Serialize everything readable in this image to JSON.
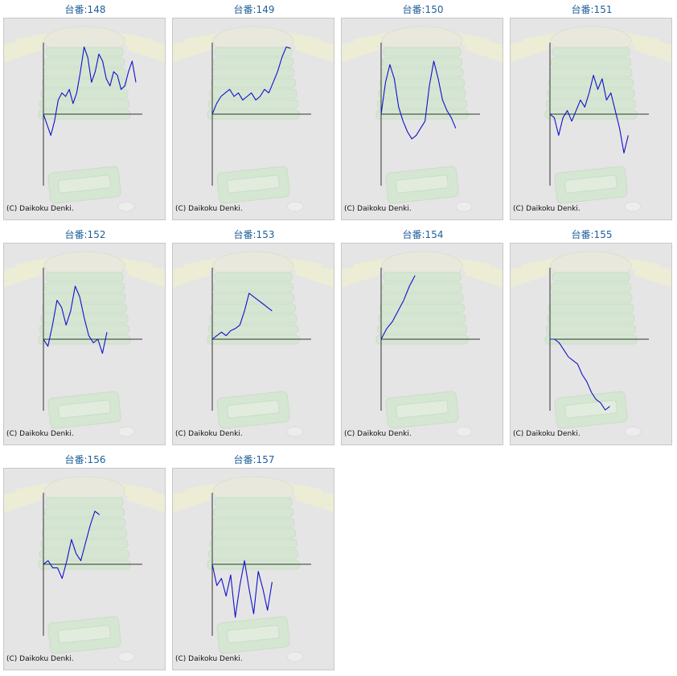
{
  "label_prefix": "台番:",
  "copyright": "(C) Daikoku Denki.",
  "colors": {
    "line": "#1111cc",
    "axis": "#333333",
    "title": "#1f5f9a",
    "card_bg": "#e5e5e5"
  },
  "chart_data": [
    {
      "type": "line",
      "title": "台番:148",
      "ylim": [
        -1,
        1
      ],
      "values": [
        0,
        -0.15,
        -0.3,
        -0.1,
        0.2,
        0.3,
        0.25,
        0.35,
        0.15,
        0.3,
        0.6,
        0.95,
        0.8,
        0.45,
        0.6,
        0.85,
        0.75,
        0.5,
        0.4,
        0.6,
        0.55,
        0.35,
        0.4,
        0.6,
        0.75,
        0.45
      ]
    },
    {
      "type": "line",
      "title": "台番:149",
      "ylim": [
        -1,
        1
      ],
      "values": [
        0,
        0.15,
        0.25,
        0.3,
        0.35,
        0.25,
        0.3,
        0.2,
        0.25,
        0.3,
        0.2,
        0.25,
        0.35,
        0.3,
        0.45,
        0.6,
        0.8,
        0.95,
        0.93
      ]
    },
    {
      "type": "line",
      "title": "台番:150",
      "ylim": [
        -1,
        1
      ],
      "values": [
        0,
        0.45,
        0.7,
        0.5,
        0.1,
        -0.1,
        -0.25,
        -0.35,
        -0.3,
        -0.2,
        -0.1,
        0.4,
        0.75,
        0.5,
        0.2,
        0.05,
        -0.05,
        -0.2
      ]
    },
    {
      "type": "line",
      "title": "台番:151",
      "ylim": [
        -1,
        1
      ],
      "values": [
        0,
        -0.05,
        -0.3,
        -0.05,
        0.05,
        -0.1,
        0.05,
        0.2,
        0.1,
        0.3,
        0.55,
        0.35,
        0.5,
        0.2,
        0.3,
        0.05,
        -0.2,
        -0.55,
        -0.3
      ]
    },
    {
      "type": "line",
      "title": "台番:152",
      "ylim": [
        -1,
        1
      ],
      "values": [
        0,
        -0.1,
        0.2,
        0.55,
        0.45,
        0.2,
        0.4,
        0.75,
        0.6,
        0.3,
        0.05,
        -0.05,
        0,
        -0.2,
        0.1
      ]
    },
    {
      "type": "line",
      "title": "台番:153",
      "ylim": [
        -1,
        1
      ],
      "values": [
        0,
        0.05,
        0.1,
        0.05,
        0.12,
        0.15,
        0.2,
        0.4,
        0.65,
        0.6,
        0.55,
        0.5,
        0.45,
        0.4
      ]
    },
    {
      "type": "line",
      "title": "台番:154",
      "ylim": [
        -1,
        1
      ],
      "values": [
        0,
        0.15,
        0.25,
        0.4,
        0.55,
        0.75,
        0.9
      ]
    },
    {
      "type": "line",
      "title": "台番:155",
      "ylim": [
        -1,
        1
      ],
      "values": [
        0,
        0,
        -0.05,
        -0.15,
        -0.25,
        -0.3,
        -0.35,
        -0.5,
        -0.6,
        -0.75,
        -0.85,
        -0.9,
        -1,
        -0.95
      ]
    },
    {
      "type": "line",
      "title": "台番:156",
      "ylim": [
        -1,
        1
      ],
      "values": [
        0,
        0.05,
        -0.05,
        -0.05,
        -0.2,
        0.05,
        0.35,
        0.15,
        0.05,
        0.3,
        0.55,
        0.75,
        0.7
      ]
    },
    {
      "type": "line",
      "title": "台番:157",
      "ylim": [
        -1,
        1
      ],
      "values": [
        0,
        -0.3,
        -0.2,
        -0.45,
        -0.15,
        -0.75,
        -0.3,
        0.05,
        -0.35,
        -0.7,
        -0.1,
        -0.35,
        -0.65,
        -0.25
      ]
    }
  ]
}
